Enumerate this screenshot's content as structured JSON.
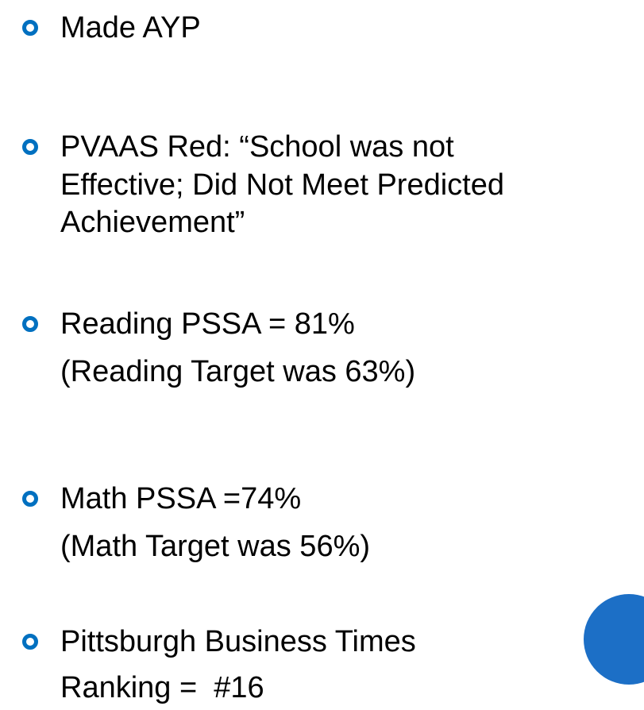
{
  "items": [
    {
      "lines": [
        "Made AYP"
      ]
    },
    {
      "lines": [
        "PVAAS Red: “School was not",
        "Effective; Did Not Meet Predicted",
        "Achievement”"
      ]
    },
    {
      "lines": [
        "Reading PSSA = 81%",
        "(Reading Target was 63%)"
      ]
    },
    {
      "lines": [
        "Math PSSA =74%",
        "(Math Target was 56%)"
      ]
    },
    {
      "lines": [
        "Pittsburgh Business Times",
        "Ranking =  #16"
      ]
    }
  ]
}
